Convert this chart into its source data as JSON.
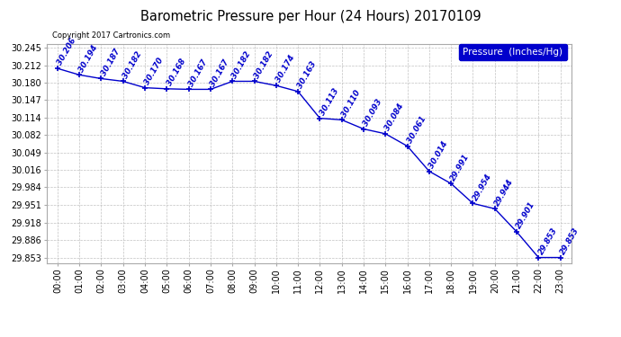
{
  "title": "Barometric Pressure per Hour (24 Hours) 20170109",
  "copyright": "Copyright 2017 Cartronics.com",
  "legend_label": "Pressure  (Inches/Hg)",
  "hours": [
    0,
    1,
    2,
    3,
    4,
    5,
    6,
    7,
    8,
    9,
    10,
    11,
    12,
    13,
    14,
    15,
    16,
    17,
    18,
    19,
    20,
    21,
    22,
    23
  ],
  "hour_labels": [
    "00:00",
    "01:00",
    "02:00",
    "03:00",
    "04:00",
    "05:00",
    "06:00",
    "07:00",
    "08:00",
    "09:00",
    "10:00",
    "11:00",
    "12:00",
    "13:00",
    "14:00",
    "15:00",
    "16:00",
    "17:00",
    "18:00",
    "19:00",
    "20:00",
    "21:00",
    "22:00",
    "23:00"
  ],
  "pressures": [
    30.206,
    30.194,
    30.187,
    30.182,
    30.17,
    30.168,
    30.167,
    30.167,
    30.182,
    30.182,
    30.174,
    30.163,
    30.113,
    30.11,
    30.093,
    30.084,
    30.061,
    30.014,
    29.991,
    29.954,
    29.944,
    29.901,
    29.853,
    29.853
  ],
  "line_color": "#0000cc",
  "marker_color": "#0000cc",
  "text_color": "#0000cc",
  "bg_color": "#ffffff",
  "grid_color": "#bbbbbb",
  "ylim_min": 29.843,
  "ylim_max": 30.252,
  "yticks": [
    29.853,
    29.886,
    29.918,
    29.951,
    29.984,
    30.016,
    30.049,
    30.082,
    30.114,
    30.147,
    30.18,
    30.212,
    30.245
  ],
  "annotation_fontsize": 6.2,
  "tick_fontsize": 7.0,
  "title_fontsize": 10.5,
  "copyright_fontsize": 6.0,
  "legend_fontsize": 7.5
}
